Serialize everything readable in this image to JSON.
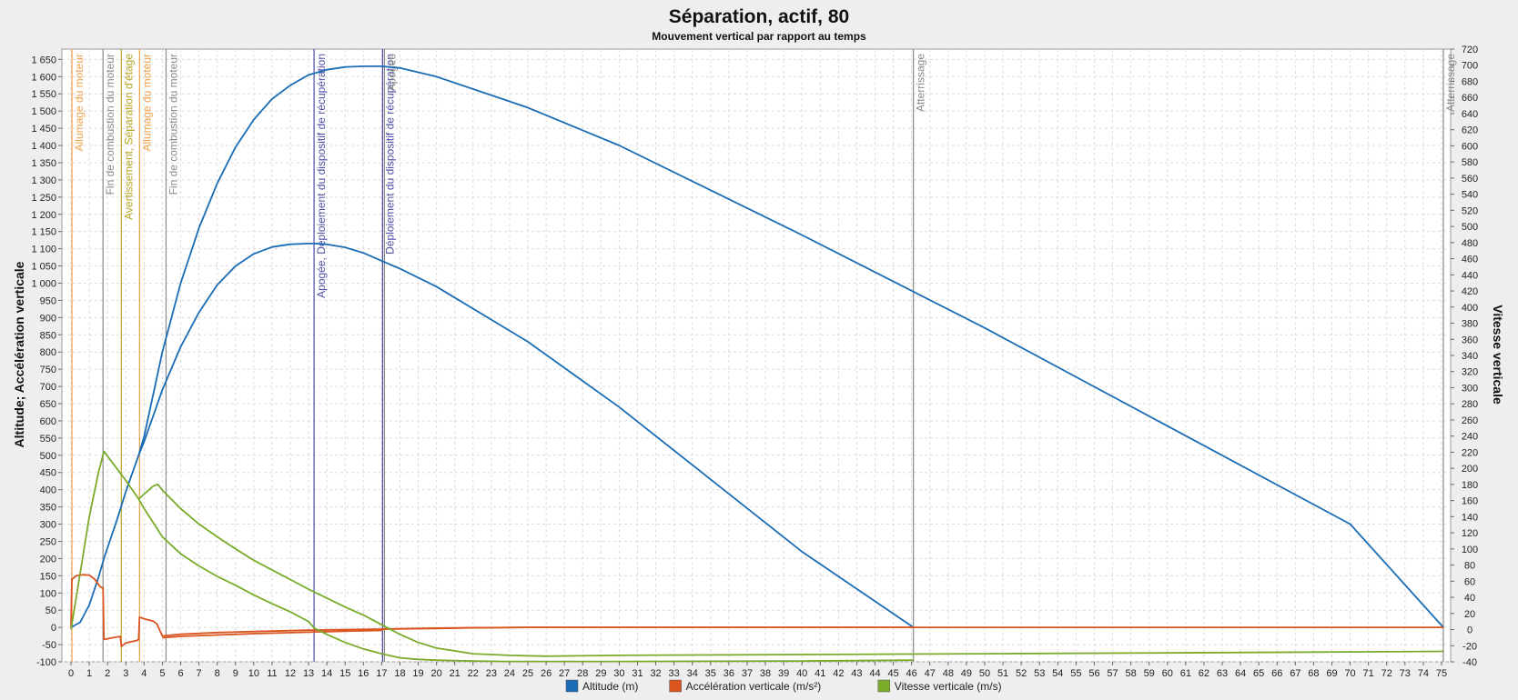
{
  "chart_data": {
    "type": "line",
    "title": "Séparation, actif, 80",
    "subtitle": "Mouvement vertical par rapport au temps",
    "xlabel": "",
    "ylabel": "Altitude; Accélération verticale",
    "y2label": "Vitesse verticale",
    "xlim": [
      -0.5,
      75.5
    ],
    "ylim": [
      -100,
      1680
    ],
    "y2lim": [
      -40,
      720
    ],
    "xticks": [
      0,
      1,
      2,
      3,
      4,
      5,
      6,
      7,
      8,
      9,
      10,
      11,
      12,
      13,
      14,
      15,
      16,
      17,
      18,
      19,
      20,
      21,
      22,
      23,
      24,
      25,
      26,
      27,
      28,
      29,
      30,
      31,
      32,
      33,
      34,
      35,
      36,
      37,
      38,
      39,
      40,
      41,
      42,
      43,
      44,
      45,
      46,
      47,
      48,
      49,
      50,
      51,
      52,
      53,
      54,
      55,
      56,
      57,
      58,
      59,
      60,
      61,
      62,
      63,
      64,
      65,
      66,
      67,
      68,
      69,
      70,
      71,
      72,
      73,
      74,
      75
    ],
    "yticks": [
      -100,
      -50,
      0,
      50,
      100,
      150,
      200,
      250,
      300,
      350,
      400,
      450,
      500,
      550,
      600,
      650,
      700,
      750,
      800,
      850,
      900,
      950,
      1000,
      1050,
      1100,
      1150,
      1200,
      1250,
      1300,
      1350,
      1400,
      1450,
      1500,
      1550,
      1600,
      1650
    ],
    "y2ticks": [
      -40,
      -20,
      0,
      20,
      40,
      60,
      80,
      100,
      120,
      140,
      160,
      180,
      200,
      220,
      240,
      260,
      280,
      300,
      320,
      340,
      360,
      380,
      400,
      420,
      440,
      460,
      480,
      500,
      520,
      540,
      560,
      580,
      600,
      620,
      640,
      660,
      680,
      700,
      720
    ],
    "grid": true,
    "legend_position": "bottom",
    "colors": {
      "altitude": "#1a6cb5",
      "acceleration": "#d9541e",
      "velocity": "#7aab2a"
    },
    "series": [
      {
        "name": "Altitude (m)",
        "axis": "left",
        "color": "#1a6cb5",
        "x": [
          0,
          0.5,
          1,
          1.5,
          1.8,
          2.5,
          3,
          3.7,
          4,
          5,
          6,
          7,
          8,
          9,
          10,
          11,
          12,
          13,
          13.3,
          14,
          15,
          16,
          17,
          18,
          20,
          25,
          30,
          35,
          40,
          46.1
        ],
        "y": [
          0,
          15,
          65,
          145,
          200,
          310,
          395,
          500,
          540,
          690,
          815,
          915,
          995,
          1050,
          1085,
          1105,
          1113,
          1115,
          1115,
          1113,
          1104,
          1088,
          1065,
          1042,
          990,
          830,
          640,
          430,
          220,
          0
        ]
      },
      {
        "name": "Altitude (m)",
        "axis": "left",
        "color": "#1a6cb5",
        "x": [
          3.7,
          4,
          5,
          6,
          7,
          8,
          9,
          10,
          11,
          12,
          13,
          14,
          15,
          16,
          17,
          18,
          20,
          25,
          30,
          40,
          50,
          60,
          70,
          75.1
        ],
        "y": [
          500,
          555,
          800,
          1000,
          1160,
          1290,
          1395,
          1475,
          1535,
          1575,
          1605,
          1620,
          1628,
          1630,
          1630,
          1625,
          1600,
          1510,
          1400,
          1140,
          870,
          585,
          300,
          0
        ]
      },
      {
        "name": "Accélération verticale (m/s²)",
        "axis": "left",
        "color": "#d9541e",
        "x": [
          0,
          0.05,
          0.3,
          0.6,
          1,
          1.3,
          1.5,
          1.6,
          1.75,
          1.8,
          2.5,
          2.7,
          2.75,
          3,
          3.6,
          3.7,
          3.75,
          4,
          4.5,
          4.7,
          5,
          6,
          8,
          10,
          13,
          17,
          20,
          25,
          30,
          40,
          50,
          60,
          70,
          75.1
        ],
        "y": [
          0,
          140,
          150,
          153,
          152,
          140,
          125,
          118,
          115,
          -35,
          -28,
          -26,
          -55,
          -45,
          -38,
          -35,
          30,
          25,
          18,
          10,
          -25,
          -20,
          -15,
          -12,
          -8,
          -5,
          -2,
          0,
          0,
          0,
          0,
          0,
          0,
          0
        ]
      },
      {
        "name": "Accélération verticale (m/s²)",
        "axis": "left",
        "color": "#d9541e",
        "x": [
          5,
          6,
          8,
          10,
          13,
          15,
          17,
          17.1,
          20,
          22,
          25,
          30,
          46.1
        ],
        "y": [
          -30,
          -26,
          -22,
          -18,
          -14,
          -11,
          -9,
          -5,
          -3,
          -1,
          0,
          0,
          0
        ]
      },
      {
        "name": "Vitesse verticale (m/s)",
        "axis": "right",
        "color": "#7aab2a",
        "x": [
          0,
          0.5,
          1,
          1.5,
          1.8,
          2.5,
          3,
          3.7,
          4,
          4.5,
          4.75,
          5,
          6,
          7,
          8,
          9,
          10,
          11,
          12,
          13,
          14,
          15,
          16,
          17,
          18,
          19,
          20,
          22,
          24,
          26,
          30,
          40,
          50,
          60,
          75.1
        ],
        "y": [
          0,
          70,
          140,
          195,
          221,
          200,
          185,
          162,
          168,
          178,
          180,
          173,
          150,
          131,
          115,
          100,
          86,
          74,
          62,
          50,
          39,
          28,
          18,
          6,
          -6,
          -16,
          -23,
          -30,
          -32,
          -33,
          -32,
          -31,
          -30,
          -29,
          -27
        ]
      },
      {
        "name": "Vitesse verticale (m/s)",
        "axis": "right",
        "color": "#7aab2a",
        "x": [
          3.7,
          4,
          5,
          6,
          7,
          8,
          9,
          10,
          11,
          12,
          13,
          13.3,
          14,
          15,
          16,
          17,
          18,
          19,
          20,
          22,
          24,
          26,
          30,
          40,
          46.1
        ],
        "y": [
          162,
          150,
          115,
          94,
          79,
          66,
          55,
          43,
          32,
          22,
          10,
          2,
          -6,
          -16,
          -24,
          -30,
          -35,
          -37,
          -38,
          -39,
          -39.5,
          -39.5,
          -39.5,
          -39,
          -38
        ]
      }
    ],
    "annotations": [
      {
        "x": 0.05,
        "label": "Allumage du moteur",
        "color": "#f0a24a"
      },
      {
        "x": 1.75,
        "label": "Fin de combustion du moteur",
        "color": "#8a8a8a"
      },
      {
        "x": 2.75,
        "label": "Avertissement, Séparation d'étage",
        "color": "#b5a51e"
      },
      {
        "x": 3.75,
        "label": "Allumage du moteur",
        "color": "#f0a24a"
      },
      {
        "x": 5.2,
        "label": "Fin de combustion du moteur",
        "color": "#8a8a8a"
      },
      {
        "x": 13.3,
        "label": "Apogée, Déploiement du dispositif de récupération",
        "color": "#4e4ea6"
      },
      {
        "x": 17.05,
        "label": "Déploiement du dispositif de récupération",
        "color": "#4e4ea6"
      },
      {
        "x": 17.15,
        "label": "Apogée",
        "color": "#8a8a8a"
      },
      {
        "x": 46.1,
        "label": "Atterrissage",
        "color": "#8a8a8a"
      },
      {
        "x": 75.1,
        "label": "Atterrissage",
        "color": "#8a8a8a"
      }
    ]
  }
}
